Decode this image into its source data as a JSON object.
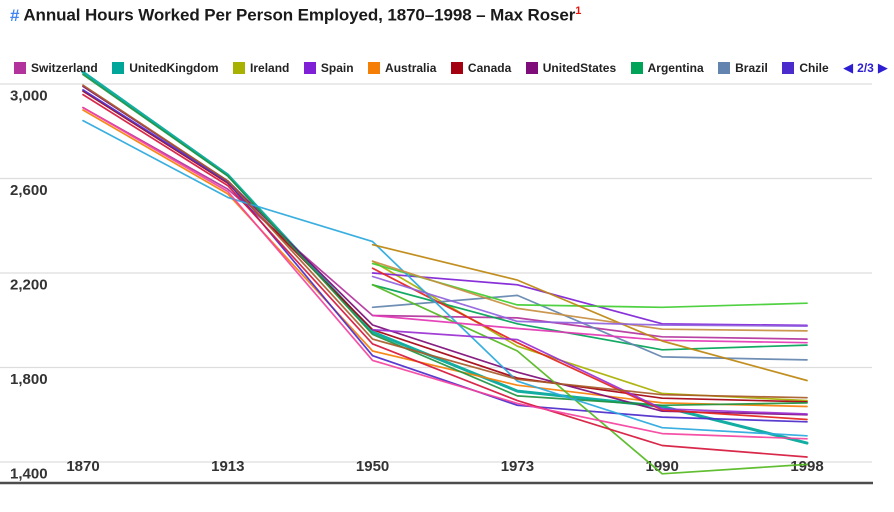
{
  "header": {
    "hash": "#",
    "title": "Annual Hours Worked Per Person Employed, 1870–1998 – Max Roser",
    "footnote_marker": "1"
  },
  "legend": {
    "items": [
      {
        "label": "Switzerland",
        "color": "#b2339c"
      },
      {
        "label": "UnitedKingdom",
        "color": "#00a69a"
      },
      {
        "label": "Ireland",
        "color": "#a8b000"
      },
      {
        "label": "Spain",
        "color": "#7f1fd6"
      },
      {
        "label": "Australia",
        "color": "#f57f06"
      },
      {
        "label": "Canada",
        "color": "#a30010"
      },
      {
        "label": "UnitedStates",
        "color": "#7e0d7a"
      },
      {
        "label": "Argentina",
        "color": "#00a357"
      },
      {
        "label": "Brazil",
        "color": "#6284ae"
      },
      {
        "label": "Chile",
        "color": "#4b2bcb"
      }
    ],
    "pagination": {
      "label": "2/3",
      "prev_icon": "◀",
      "next_icon": "▶",
      "color": "#2d1ed1"
    }
  },
  "chart_data": {
    "type": "line",
    "title": "Annual Hours Worked Per Person Employed, 1870–1998",
    "x_axis_type": "categorical",
    "x_categories": [
      "1870",
      "1913",
      "1950",
      "1973",
      "1990",
      "1998"
    ],
    "y_ticks": [
      "3,000",
      "2,600",
      "2,200",
      "1,800",
      "1,400"
    ],
    "y_tick_values": [
      3000,
      2600,
      2200,
      1800,
      1400
    ],
    "ylim": [
      1400,
      3100
    ],
    "grid": true,
    "legend_position": "top",
    "legend_page": "2/3",
    "series": [
      {
        "name": "Switzerland",
        "color": "#b2339c",
        "values": [
          2900,
          2555,
          2020,
          2010,
          1930,
          1920
        ]
      },
      {
        "name": "UnitedKingdom",
        "color": "#00a69a",
        "width": 3,
        "values": [
          3050,
          2615,
          1950,
          1700,
          1635,
          1480
        ]
      },
      {
        "name": "Ireland",
        "color": "#a8b000",
        "values": [
          null,
          null,
          2250,
          1890,
          1690,
          1660
        ]
      },
      {
        "name": "Spain",
        "color": "#7f1fd6",
        "values": [
          null,
          null,
          2200,
          2150,
          1985,
          1978
        ]
      },
      {
        "name": "Australia",
        "color": "#f57f06",
        "values": [
          2890,
          2535,
          1870,
          1725,
          1650,
          1635
        ]
      },
      {
        "name": "Canada",
        "color": "#a30010",
        "values": [
          2970,
          2580,
          1960,
          1755,
          1670,
          1655
        ]
      },
      {
        "name": "UnitedStates",
        "color": "#7e0d7a",
        "values": [
          2990,
          2590,
          1980,
          1780,
          1615,
          1600
        ]
      },
      {
        "name": "Argentina",
        "color": "#00a357",
        "values": [
          null,
          null,
          2150,
          1985,
          1875,
          1895
        ]
      },
      {
        "name": "Brazil",
        "color": "#6284ae",
        "values": [
          null,
          null,
          2055,
          2105,
          1845,
          1832
        ]
      },
      {
        "name": "Chile",
        "color": "#4b2bcb",
        "values": [
          2975,
          2585,
          1850,
          1640,
          1590,
          1570
        ]
      },
      {
        "name": "unlabeled-bright-green",
        "color": "#41cd32",
        "values": [
          null,
          null,
          2240,
          2065,
          2055,
          2072
        ]
      },
      {
        "name": "unlabeled-green-steep",
        "color": "#52b81e",
        "values": [
          null,
          null,
          2150,
          1870,
          1350,
          1390
        ]
      },
      {
        "name": "unlabeled-forest-green",
        "color": "#1f9440",
        "values": [
          3040,
          2610,
          1940,
          1680,
          1640,
          1650
        ]
      },
      {
        "name": "unlabeled-red",
        "color": "#e4231d",
        "values": [
          null,
          null,
          2220,
          1905,
          1620,
          1580
        ]
      },
      {
        "name": "unlabeled-crimson",
        "color": "#d6173c",
        "values": [
          2955,
          2570,
          1900,
          1660,
          1470,
          1421
        ]
      },
      {
        "name": "unlabeled-light-blue",
        "color": "#29a8dd",
        "values": [
          2845,
          2520,
          2333,
          1742,
          1545,
          1511
        ]
      },
      {
        "name": "unlabeled-pink",
        "color": "#f4429e",
        "values": [
          2900,
          2545,
          1830,
          1648,
          1520,
          1498
        ]
      },
      {
        "name": "unlabeled-magenta",
        "color": "#e336b4",
        "values": [
          null,
          null,
          2020,
          1965,
          1915,
          1905
        ]
      },
      {
        "name": "unlabeled-violet",
        "color": "#9a2fd0",
        "values": [
          null,
          null,
          1960,
          1918,
          1625,
          1603
        ]
      },
      {
        "name": "unlabeled-ochre",
        "color": "#bd860e",
        "values": [
          null,
          null,
          2320,
          2170,
          1912,
          1745
        ]
      },
      {
        "name": "unlabeled-tan",
        "color": "#c88f41",
        "values": [
          null,
          null,
          2250,
          2050,
          1962,
          1955
        ]
      },
      {
        "name": "unlabeled-brown",
        "color": "#a85b28",
        "values": [
          2995,
          2590,
          1920,
          1750,
          1685,
          1672
        ]
      },
      {
        "name": "unlabeled-light-purple",
        "color": "#8f62dd",
        "values": [
          null,
          null,
          2185,
          1995,
          1980,
          1975
        ]
      }
    ]
  }
}
